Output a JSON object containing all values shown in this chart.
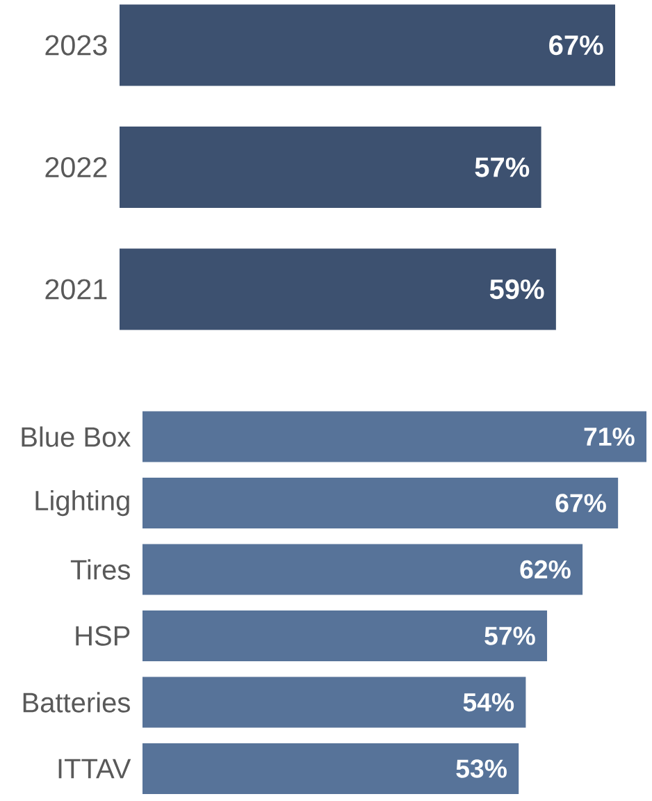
{
  "chart_data": [
    {
      "type": "bar",
      "orientation": "horizontal",
      "categories": [
        "2023",
        "2022",
        "2021"
      ],
      "values": [
        67,
        57,
        59
      ],
      "value_labels": [
        "67%",
        "57%",
        "59%"
      ],
      "color": "#3d5170",
      "tick_labels": "y"
    },
    {
      "type": "bar",
      "orientation": "horizontal",
      "categories": [
        "Blue Box",
        "Lighting",
        "Tires",
        "HSP",
        "Batteries",
        "ITTAV"
      ],
      "values": [
        71,
        67,
        62,
        57,
        54,
        53
      ],
      "value_labels": [
        "71%",
        "67%",
        "62%",
        "57%",
        "54%",
        "53%"
      ],
      "color": "#577399",
      "tick_labels": "y"
    }
  ]
}
